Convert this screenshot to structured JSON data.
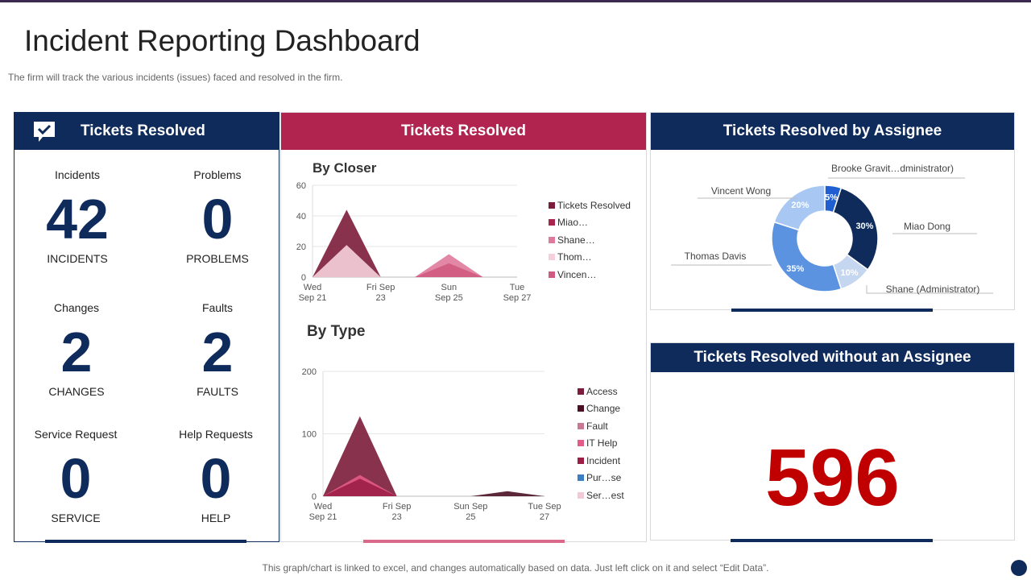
{
  "page": {
    "title": "Incident Reporting Dashboard",
    "subtitle": "The firm will track the various incidents (issues) faced and resolved in the firm.",
    "footer": "This graph/chart is linked to excel, and changes automatically based on data. Just left click on it and select “Edit Data”."
  },
  "left_panel": {
    "header": "Tickets Resolved",
    "icon": "check-chat-icon",
    "stats": [
      {
        "label": "Incidents",
        "value": "42",
        "caption": "INCIDENTS"
      },
      {
        "label": "Problems",
        "value": "0",
        "caption": "PROBLEMS"
      },
      {
        "label": "Changes",
        "value": "2",
        "caption": "CHANGES"
      },
      {
        "label": "Faults",
        "value": "2",
        "caption": "FAULTS"
      },
      {
        "label": "Service Request",
        "value": "0",
        "caption": "SERVICE"
      },
      {
        "label": "Help Requests",
        "value": "0",
        "caption": "HELP"
      }
    ]
  },
  "middle_panel": {
    "header": "Tickets Resolved"
  },
  "right_top": {
    "header": "Tickets Resolved by Assignee"
  },
  "right_bottom": {
    "header": "Tickets Resolved without an Assignee",
    "value": "596"
  },
  "colors": {
    "navy": "#0f2b5b",
    "crimson": "#b0244f",
    "big_number": "#c00000"
  },
  "chart_data": [
    {
      "type": "area",
      "title": "By Closer",
      "categories": [
        "Wed Sep 21",
        "Fri Sep 23",
        "Sun Sep 25",
        "Tue Sep 27"
      ],
      "tick_lines": [
        [
          "Wed",
          "Sep 21"
        ],
        [
          "Fri Sep",
          "23"
        ],
        [
          "Sun",
          "Sep 25"
        ],
        [
          "Tue",
          "Sep 27"
        ]
      ],
      "x": [
        0,
        1,
        2,
        3,
        4,
        5,
        6
      ],
      "ylim": [
        0,
        60
      ],
      "yticks": [
        0,
        20,
        40,
        60
      ],
      "series": [
        {
          "name": "Tickets Resolved",
          "color": "#7b1c3a",
          "values": [
            0,
            44,
            0,
            0,
            0,
            0,
            0
          ]
        },
        {
          "name": "Miao…",
          "color": "#a8254f",
          "values": [
            0,
            0,
            0,
            0,
            0,
            0,
            0
          ]
        },
        {
          "name": "Shane…",
          "color": "#e07a9c",
          "values": [
            0,
            0,
            0,
            0,
            15,
            0,
            0
          ]
        },
        {
          "name": "Thom…",
          "color": "#f5d0dc",
          "values": [
            0,
            21,
            0,
            0,
            0,
            0,
            0
          ]
        },
        {
          "name": "Vincen…",
          "color": "#d05a80",
          "values": [
            0,
            0,
            0,
            0,
            9,
            0,
            0
          ]
        }
      ]
    },
    {
      "type": "area",
      "title": "By Type",
      "categories": [
        "Wed Sep 21",
        "Fri Sep 23",
        "Sun Sep 25",
        "Tue Sep 27"
      ],
      "tick_lines": [
        [
          "Wed",
          "Sep 21"
        ],
        [
          "Fri Sep",
          "23"
        ],
        [
          "Sun Sep",
          "25"
        ],
        [
          "Tue Sep",
          "27"
        ]
      ],
      "x": [
        0,
        1,
        2,
        3,
        4,
        5,
        6
      ],
      "ylim": [
        0,
        200
      ],
      "yticks": [
        0,
        100,
        200
      ],
      "series": [
        {
          "name": "Access",
          "color": "#7b1c3a",
          "values": [
            0,
            128,
            0,
            0,
            0,
            0,
            0
          ]
        },
        {
          "name": "Change",
          "color": "#4a0f22",
          "values": [
            0,
            0,
            0,
            0,
            0,
            8,
            0
          ]
        },
        {
          "name": "Fault",
          "color": "#c97a92",
          "values": [
            0,
            0,
            0,
            0,
            0,
            0,
            0
          ]
        },
        {
          "name": "IT Help",
          "color": "#e45b87",
          "values": [
            0,
            34,
            0,
            0,
            0,
            0,
            0
          ]
        },
        {
          "name": "Incident",
          "color": "#9b1e46",
          "values": [
            0,
            28,
            0,
            0,
            0,
            0,
            0
          ]
        },
        {
          "name": "Pur…se",
          "color": "#3a7fbf",
          "values": [
            0,
            0,
            0,
            0,
            0,
            0,
            0
          ]
        },
        {
          "name": "Ser…est",
          "color": "#f2c8d6",
          "values": [
            0,
            0,
            0,
            0,
            0,
            0,
            0
          ]
        }
      ]
    },
    {
      "type": "pie",
      "title": "Tickets Resolved by Assignee",
      "slices": [
        {
          "name": "Brooke Gravit…dministrator)",
          "value": 5,
          "label": "5%",
          "color": "#1f5fd1"
        },
        {
          "name": "Miao Dong",
          "value": 30,
          "label": "30%",
          "color": "#0f2b5b"
        },
        {
          "name": "Shane (Administrator)",
          "value": 10,
          "label": "10%",
          "color": "#c5d6f0"
        },
        {
          "name": "Thomas Davis",
          "value": 35,
          "label": "35%",
          "color": "#5b93e0"
        },
        {
          "name": "Vincent Wong",
          "value": 20,
          "label": "20%",
          "color": "#a8c8f3"
        }
      ]
    }
  ]
}
